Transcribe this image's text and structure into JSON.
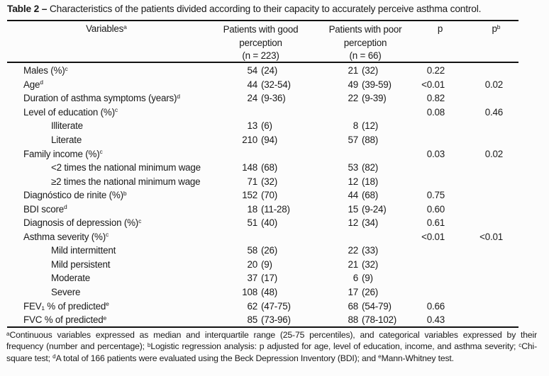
{
  "title": {
    "label": "Table 2 –",
    "text": "Characteristics of the patients divided according to their capacity to accurately perceive asthma control."
  },
  "columns": {
    "variables": {
      "label": "Variables",
      "sup": "a"
    },
    "good": {
      "lines": [
        "Patients with good",
        "perception",
        "(n = 223)"
      ]
    },
    "poor": {
      "lines": [
        "Patients with poor",
        "perception",
        "(n = 66)"
      ]
    },
    "p": {
      "label": "p",
      "sup": ""
    },
    "pb": {
      "label": "p",
      "sup": "b"
    }
  },
  "rows": [
    {
      "label": "Males (%)",
      "sup": "c",
      "indent": false,
      "good_n": "54",
      "good_p": "(24)",
      "poor_n": "21",
      "poor_p": "(32)",
      "p": "0.22",
      "pb": ""
    },
    {
      "label": "Age",
      "sup": "d",
      "indent": false,
      "good_n": "44",
      "good_p": "(32-54)",
      "poor_n": "49",
      "poor_p": "(39-59)",
      "p": "<0.01",
      "pb": "0.02"
    },
    {
      "label": "Duration of asthma symptoms (years)",
      "sup": "d",
      "indent": false,
      "good_n": "24",
      "good_p": "(9-36)",
      "poor_n": "22",
      "poor_p": "(9-39)",
      "p": "0.82",
      "pb": ""
    },
    {
      "label": "Level of education (%)",
      "sup": "c",
      "indent": false,
      "good_n": "",
      "good_p": "",
      "poor_n": "",
      "poor_p": "",
      "p": "0.08",
      "pb": "0.46"
    },
    {
      "label": "Illiterate",
      "sup": "",
      "indent": true,
      "good_n": "13",
      "good_p": "(6)",
      "poor_n": "8",
      "poor_p": "(12)",
      "p": "",
      "pb": ""
    },
    {
      "label": "Literate",
      "sup": "",
      "indent": true,
      "good_n": "210",
      "good_p": "(94)",
      "poor_n": "57",
      "poor_p": "(88)",
      "p": "",
      "pb": ""
    },
    {
      "label": "Family income (%)",
      "sup": "c",
      "indent": false,
      "good_n": "",
      "good_p": "",
      "poor_n": "",
      "poor_p": "",
      "p": "0.03",
      "pb": "0.02"
    },
    {
      "label": "<2 times the national minimum wage",
      "sup": "",
      "indent": true,
      "good_n": "148",
      "good_p": "(68)",
      "poor_n": "53",
      "poor_p": "(82)",
      "p": "",
      "pb": ""
    },
    {
      "label": "≥2 times the national minimum wage",
      "sup": "",
      "indent": true,
      "good_n": "71",
      "good_p": "(32)",
      "poor_n": "12",
      "poor_p": "(18)",
      "p": "",
      "pb": ""
    },
    {
      "label": "Diagnóstico de rinite (%)",
      "sup": "b",
      "indent": false,
      "good_n": "152",
      "good_p": "(70)",
      "poor_n": "44",
      "poor_p": "(68)",
      "p": "0.75",
      "pb": ""
    },
    {
      "label": "BDI score",
      "sup": "d",
      "indent": false,
      "good_n": "18",
      "good_p": "(11-28)",
      "poor_n": "15",
      "poor_p": "(9-24)",
      "p": "0.60",
      "pb": ""
    },
    {
      "label": "Diagnosis of depression (%)",
      "sup": "c",
      "indent": false,
      "good_n": "51",
      "good_p": "(40)",
      "poor_n": "12",
      "poor_p": "(34)",
      "p": "0.61",
      "pb": ""
    },
    {
      "label": "Asthma severity (%)",
      "sup": "c",
      "indent": false,
      "good_n": "",
      "good_p": "",
      "poor_n": "",
      "poor_p": "",
      "p": "<0.01",
      "pb": "<0.01"
    },
    {
      "label": "Mild intermittent",
      "sup": "",
      "indent": true,
      "good_n": "58",
      "good_p": "(26)",
      "poor_n": "22",
      "poor_p": "(33)",
      "p": "",
      "pb": ""
    },
    {
      "label": "Mild persistent",
      "sup": "",
      "indent": true,
      "good_n": "20",
      "good_p": "(9)",
      "poor_n": "21",
      "poor_p": "(32)",
      "p": "",
      "pb": ""
    },
    {
      "label": "Moderate",
      "sup": "",
      "indent": true,
      "good_n": "37",
      "good_p": "(17)",
      "poor_n": "6",
      "poor_p": "(9)",
      "p": "",
      "pb": ""
    },
    {
      "label": "Severe",
      "sup": "",
      "indent": true,
      "good_n": "108",
      "good_p": "(48)",
      "poor_n": "17",
      "poor_p": "(26)",
      "p": "",
      "pb": ""
    },
    {
      "label": "FEV₁ % of predicted",
      "sup": "e",
      "indent": false,
      "good_n": "62",
      "good_p": "(47-75)",
      "poor_n": "68",
      "poor_p": "(54-79)",
      "p": "0.66",
      "pb": ""
    },
    {
      "label": "FVC % of predicted",
      "sup": "e",
      "indent": false,
      "good_n": "85",
      "good_p": "(73-96)",
      "poor_n": "88",
      "poor_p": "(78-102)",
      "p": "0.43",
      "pb": ""
    }
  ],
  "footnotes": [
    {
      "sup": "a",
      "text": "Continuous variables expressed as median and interquartile range (25-75 percentiles), and categorical variables expressed by their frequency (number and percentage); "
    },
    {
      "sup": "b",
      "text": "Logistic regression analysis: p adjusted for age, level of education, income, and asthma severity; "
    },
    {
      "sup": "c",
      "text": "Chi-square test; "
    },
    {
      "sup": "d",
      "text": "A total of 166 patients were evaluated using the Beck Depression Inventory (BDI); and "
    },
    {
      "sup": "e",
      "text": "Mann-Whitney test."
    }
  ],
  "colors": {
    "text": "#1a1a1a",
    "rule": "#121212",
    "background": "#fcfcfc"
  }
}
